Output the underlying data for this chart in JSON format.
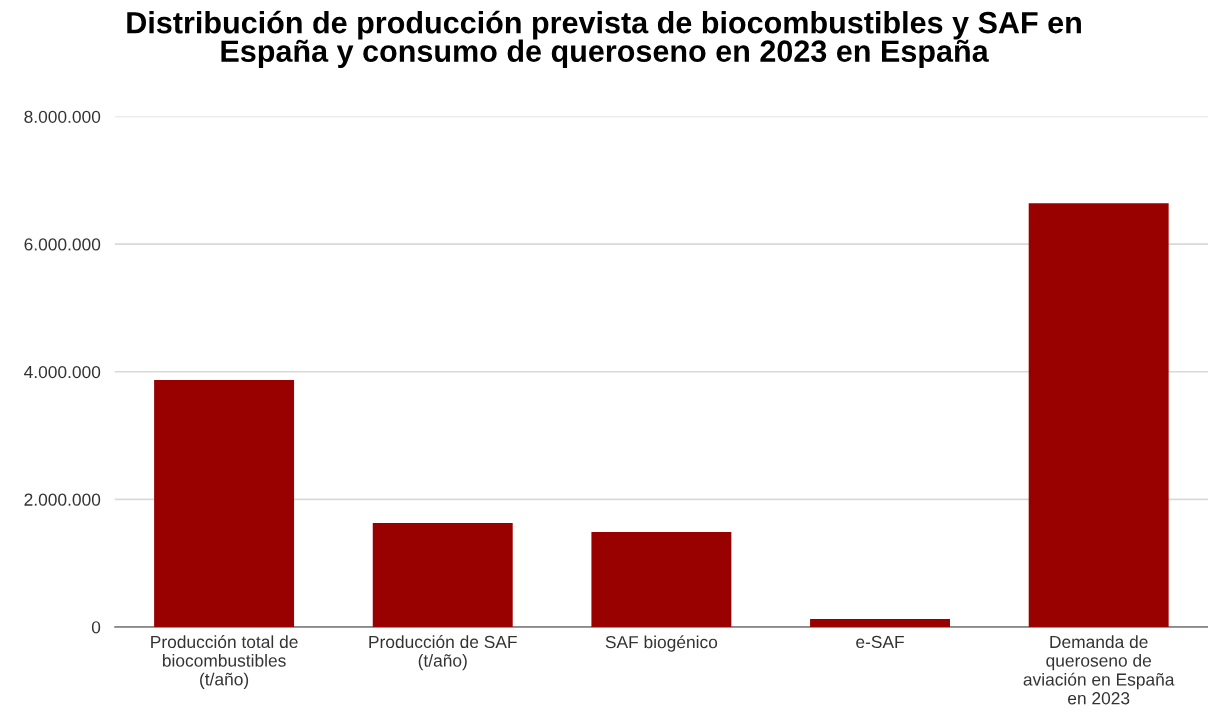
{
  "chart_data": {
    "type": "bar",
    "title": "Distribución de producción prevista de biocombustibles y SAF en\nEspaña y consumo de queroseno en 2023 en España",
    "categories": [
      "Producción total de\nbiocombustibles\n(t/año)",
      "Producción de SAF\n(t/año)",
      "SAF biogénico",
      "e-SAF",
      "Demanda de\nqueroseno de\naviación en España\nen 2023"
    ],
    "values": [
      3870000,
      1630000,
      1490000,
      125000,
      6640000
    ],
    "color": "#990000",
    "ylim": [
      0,
      8000000
    ],
    "yticks": [
      {
        "value": 0,
        "label": "0"
      },
      {
        "value": 2000000,
        "label": "2.000.000"
      },
      {
        "value": 4000000,
        "label": "4.000.000"
      },
      {
        "value": 6000000,
        "label": "6.000.000"
      },
      {
        "value": 8000000,
        "label": "8.000.000"
      }
    ],
    "grid": "y"
  }
}
